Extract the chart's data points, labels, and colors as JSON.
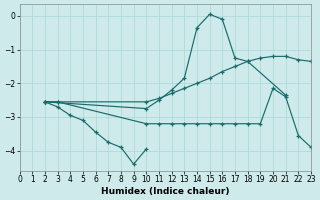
{
  "xlabel": "Humidex (Indice chaleur)",
  "bg_color": "#ceeaea",
  "line_color": "#1a6b6b",
  "xlim": [
    0,
    23
  ],
  "ylim": [
    -4.6,
    0.35
  ],
  "yticks": [
    0,
    -1,
    -2,
    -3,
    -4
  ],
  "xticks": [
    0,
    1,
    2,
    3,
    4,
    5,
    6,
    7,
    8,
    9,
    10,
    11,
    12,
    13,
    14,
    15,
    16,
    17,
    18,
    19,
    20,
    21,
    22,
    23
  ],
  "curve1_x": [
    2,
    10,
    11,
    12,
    13,
    14,
    15,
    16,
    17,
    18,
    21
  ],
  "curve1_y": [
    -2.55,
    -2.75,
    -2.5,
    -2.2,
    -1.85,
    -0.35,
    0.05,
    -0.1,
    -1.25,
    -1.35,
    -2.35
  ],
  "curve2_x": [
    2,
    3,
    10,
    11,
    12,
    13,
    14,
    15,
    16,
    17,
    18,
    19,
    20,
    21,
    22,
    23
  ],
  "curve2_y": [
    -2.55,
    -2.55,
    -2.55,
    -2.45,
    -2.3,
    -2.15,
    -2.0,
    -1.85,
    -1.65,
    -1.5,
    -1.35,
    -1.25,
    -1.2,
    -1.2,
    -1.3,
    -1.35
  ],
  "curve3_x": [
    2,
    3,
    10,
    11,
    12,
    13,
    14,
    15,
    16,
    17,
    18,
    19,
    20,
    21,
    22,
    23
  ],
  "curve3_y": [
    -2.55,
    -2.55,
    -3.2,
    -3.2,
    -3.2,
    -3.2,
    -3.2,
    -3.2,
    -3.2,
    -3.2,
    -3.2,
    -3.2,
    -2.15,
    -2.4,
    -3.55,
    -3.9
  ],
  "curve4_x": [
    2,
    3,
    4,
    5,
    6,
    7,
    8,
    9,
    10
  ],
  "curve4_y": [
    -2.55,
    -2.7,
    -2.95,
    -3.1,
    -3.45,
    -3.75,
    -3.9,
    -4.4,
    -3.95
  ]
}
